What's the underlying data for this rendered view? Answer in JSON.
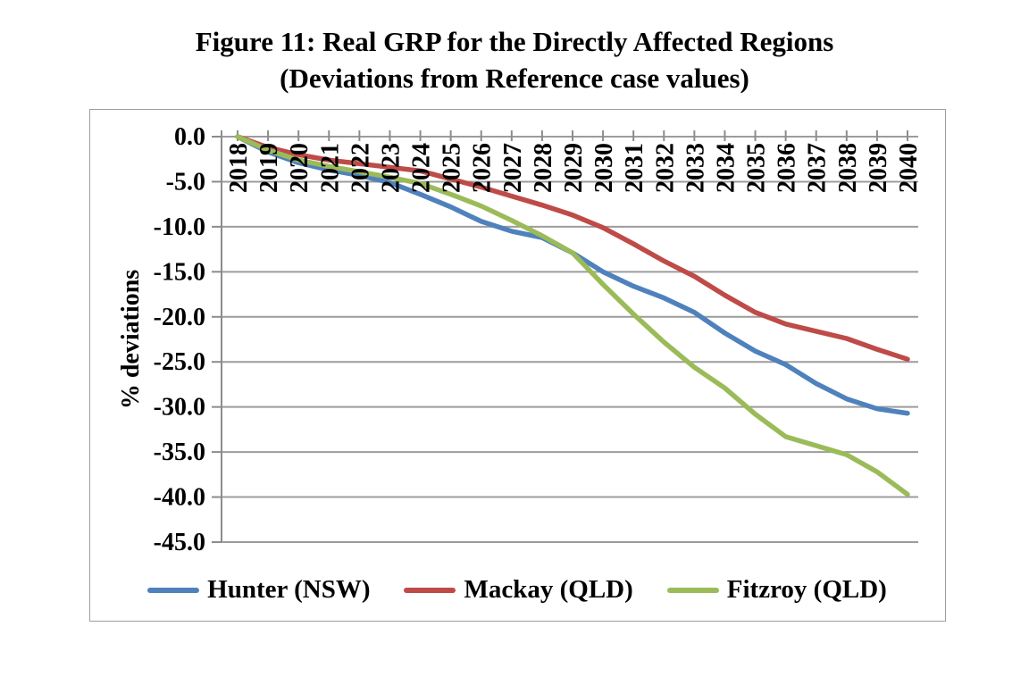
{
  "figure": {
    "title_line1": "Figure 11: Real GRP for the Directly Affected Regions",
    "title_line2": "(Deviations from Reference case values)"
  },
  "chart_data": {
    "type": "line",
    "title": "Figure 11: Real GRP for the Directly Affected Regions (Deviations from Reference case values)",
    "xlabel": "",
    "ylabel": "% deviations",
    "ylim": [
      -45.0,
      0.0
    ],
    "ytick_step": 5.0,
    "ytick_labels": [
      "0.0",
      "-5.0",
      "-10.0",
      "-15.0",
      "-20.0",
      "-25.0",
      "-30.0",
      "-35.0",
      "-40.0",
      "-45.0"
    ],
    "grid": true,
    "legend_position": "bottom",
    "x": [
      2018,
      2019,
      2020,
      2021,
      2022,
      2023,
      2024,
      2025,
      2026,
      2027,
      2028,
      2029,
      2030,
      2031,
      2032,
      2033,
      2034,
      2035,
      2036,
      2037,
      2038,
      2039,
      2040
    ],
    "series": [
      {
        "name": "Hunter (NSW)",
        "color": "#4F81BD",
        "values": [
          0.0,
          -1.7,
          -2.9,
          -3.7,
          -4.3,
          -5.1,
          -6.4,
          -7.8,
          -9.4,
          -10.5,
          -11.2,
          -12.9,
          -15.0,
          -16.6,
          -17.9,
          -19.5,
          -21.8,
          -23.8,
          -25.3,
          -27.4,
          -29.1,
          -30.2,
          -30.7
        ]
      },
      {
        "name": "Mackay (QLD)",
        "color": "#BE4B48",
        "values": [
          0.0,
          -1.2,
          -2.0,
          -2.6,
          -3.0,
          -3.4,
          -3.8,
          -4.7,
          -5.6,
          -6.6,
          -7.6,
          -8.7,
          -10.1,
          -11.9,
          -13.8,
          -15.5,
          -17.6,
          -19.5,
          -20.8,
          -21.6,
          -22.4,
          -23.6,
          -24.7
        ]
      },
      {
        "name": "Fitzroy (QLD)",
        "color": "#9BBB59",
        "values": [
          0.0,
          -1.5,
          -2.6,
          -3.3,
          -3.9,
          -4.5,
          -5.2,
          -6.4,
          -7.7,
          -9.3,
          -11.0,
          -12.9,
          -16.4,
          -19.7,
          -22.8,
          -25.6,
          -27.9,
          -30.8,
          -33.3,
          -34.3,
          -35.3,
          -37.2,
          -39.7
        ]
      }
    ],
    "axis_color": "#8c8c8c",
    "gridline_color": "#9c9c9c"
  }
}
